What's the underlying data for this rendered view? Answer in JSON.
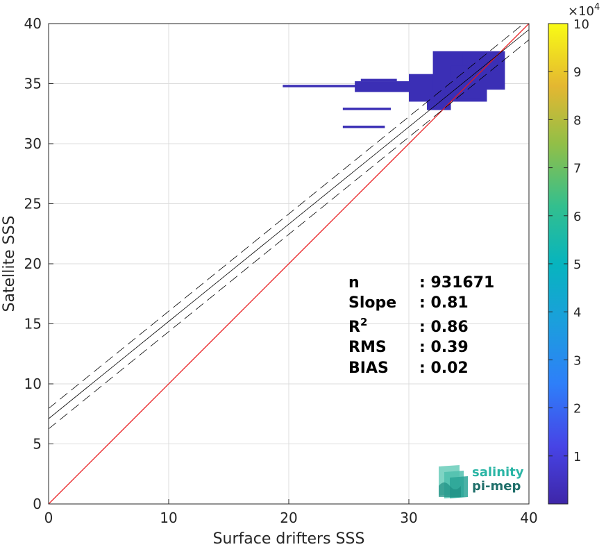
{
  "chart_data": {
    "type": "heatmap",
    "xlabel": "Surface drifters SSS",
    "ylabel": "Satellite SSS",
    "xlim": [
      0,
      40
    ],
    "ylim": [
      0,
      40
    ],
    "xticks": [
      "0",
      "10",
      "20",
      "30",
      "40"
    ],
    "yticks": [
      "0",
      "5",
      "10",
      "15",
      "20",
      "25",
      "30",
      "35",
      "40"
    ],
    "grid": true,
    "identity_line": {
      "slope": 1,
      "intercept": 0,
      "color": "#e8191c"
    },
    "regression": {
      "slope": 0.81,
      "intercept": 7.1,
      "band": 0.85
    },
    "density_cells": [
      {
        "x0": 19.5,
        "x1": 26,
        "y0": 34.7,
        "y1": 34.9
      },
      {
        "x0": 25.5,
        "x1": 30.5,
        "y0": 34.3,
        "y1": 35.2
      },
      {
        "x0": 30,
        "x1": 36.5,
        "y0": 33.5,
        "y1": 35.8
      },
      {
        "x0": 32,
        "x1": 38,
        "y0": 34.5,
        "y1": 37.7
      },
      {
        "x0": 34.5,
        "x1": 37.5,
        "y0": 36.4,
        "y1": 37.6
      },
      {
        "x0": 33,
        "x1": 36,
        "y0": 33.8,
        "y1": 34.3
      },
      {
        "x0": 24.5,
        "x1": 28.5,
        "y0": 32.8,
        "y1": 33.0
      },
      {
        "x0": 24.5,
        "x1": 28.0,
        "y0": 31.3,
        "y1": 31.5
      },
      {
        "x0": 26,
        "x1": 29,
        "y0": 35.2,
        "y1": 35.4
      },
      {
        "x0": 31.5,
        "x1": 33.5,
        "y0": 32.8,
        "y1": 33.6
      },
      {
        "x0": 33.5,
        "x1": 35.5,
        "y0": 35.5,
        "y1": 36.5
      }
    ],
    "colorbar": {
      "label_exponent": "10",
      "exponent_power": "4",
      "multiplier_symbol": "×",
      "range": [
        0,
        10
      ],
      "ticks": [
        "1",
        "2",
        "3",
        "4",
        "5",
        "6",
        "7",
        "8",
        "9",
        "10"
      ]
    },
    "stats": [
      {
        "label": "n",
        "value": ": 931671"
      },
      {
        "label": "Slope",
        "value": ": 0.81"
      },
      {
        "label": "R",
        "label_sup": "2",
        "value": ": 0.86"
      },
      {
        "label": "RMS",
        "value": ": 0.39"
      },
      {
        "label": "BIAS",
        "value": ": 0.02"
      }
    ]
  },
  "logo": {
    "line1": "salinity",
    "line2": "pi-mep",
    "color1": "#2ab5a5",
    "color2": "#1f6f6a"
  },
  "colors": {
    "density": "#3b2fb5",
    "density_dark": "#2a1f8f"
  }
}
